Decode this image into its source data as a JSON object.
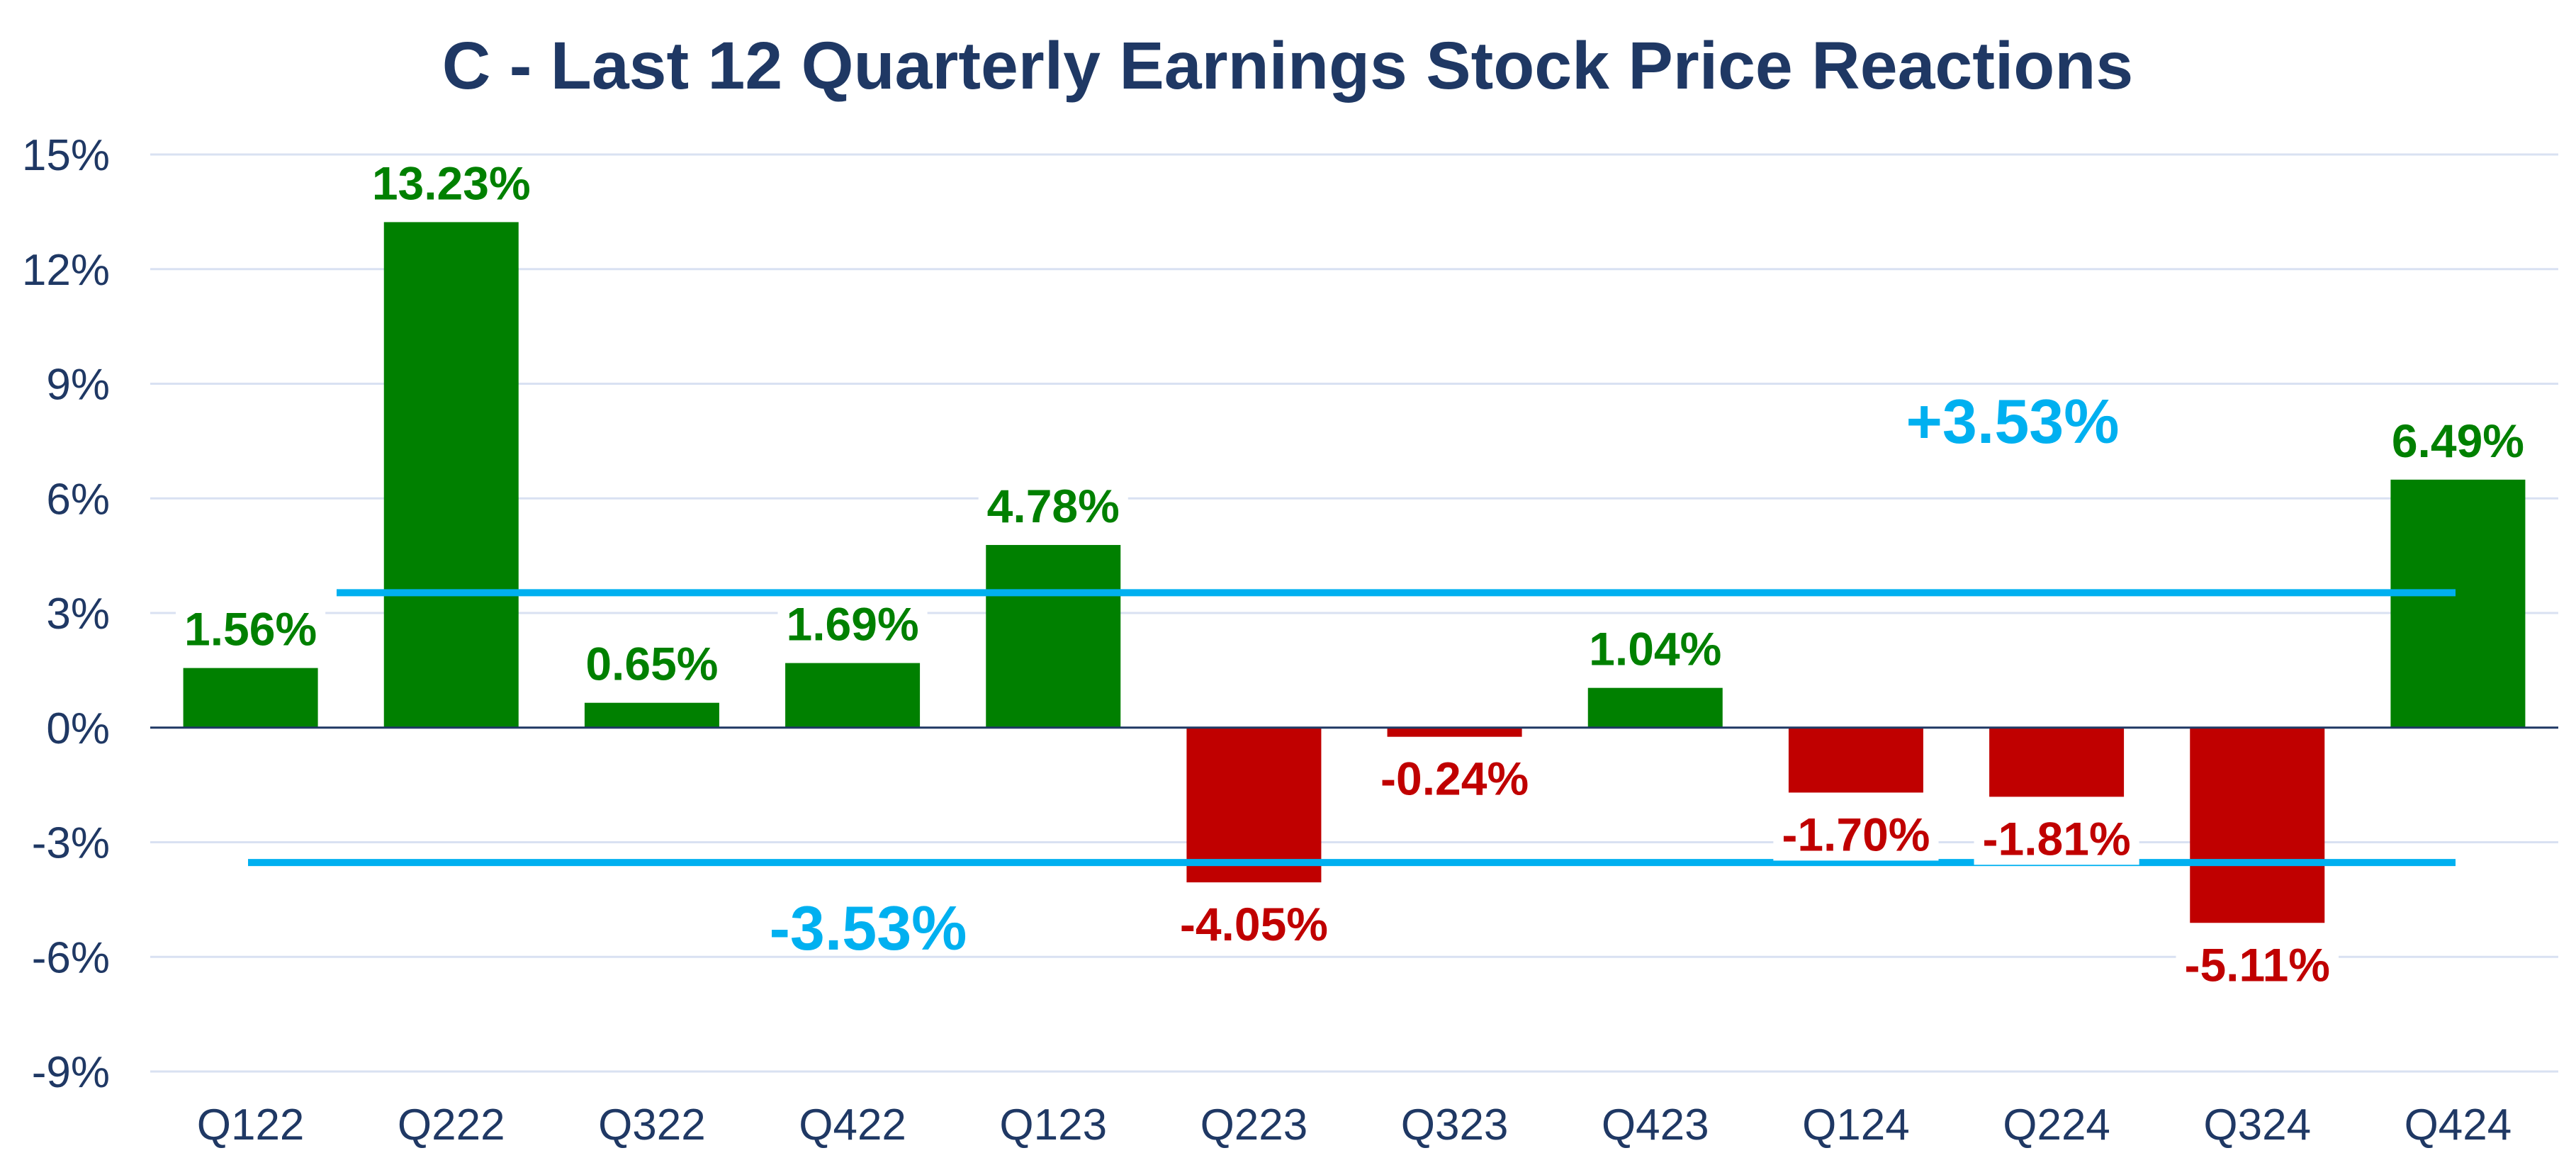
{
  "chart_data": {
    "type": "bar",
    "title": "C - Last 12 Quarterly Earnings Stock Price Reactions",
    "xlabel": "",
    "ylabel": "",
    "categories": [
      "Q122",
      "Q222",
      "Q322",
      "Q422",
      "Q123",
      "Q223",
      "Q323",
      "Q423",
      "Q124",
      "Q224",
      "Q324",
      "Q424"
    ],
    "values": [
      1.56,
      13.23,
      0.65,
      1.69,
      4.78,
      -4.05,
      -0.24,
      1.04,
      -1.7,
      -1.81,
      -5.11,
      6.49
    ],
    "value_labels": [
      "1.56%",
      "13.23%",
      "0.65%",
      "1.69%",
      "4.78%",
      "-4.05%",
      "-0.24%",
      "1.04%",
      "-1.70%",
      "-1.81%",
      "-5.11%",
      "6.49%"
    ],
    "ylim": [
      -9,
      15
    ],
    "yticks": [
      15,
      12,
      9,
      6,
      3,
      0,
      -3,
      -6,
      -9
    ],
    "ytick_labels": [
      "15%",
      "12%",
      "9%",
      "6%",
      "3%",
      "0%",
      "-3%",
      "-6%",
      "-9%"
    ],
    "grid": true,
    "legend": "none",
    "reference_lines": [
      {
        "value": 3.53,
        "label": "+3.53%"
      },
      {
        "value": -3.53,
        "label": "-3.53%"
      }
    ],
    "colors": {
      "positive": "#008000",
      "negative": "#c00000",
      "reference": "#00b0f0",
      "title": "#1f3864",
      "axis_text": "#1f3864",
      "grid": "#d9e1f2",
      "zero_axis": "#1f3864"
    }
  }
}
